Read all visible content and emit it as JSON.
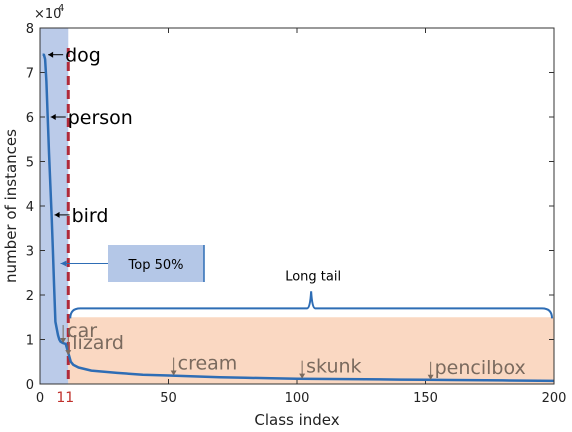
{
  "chart_data": {
    "type": "line",
    "xlabel": "Class index",
    "ylabel": "number of instances",
    "y_multiplier_label": "×10",
    "y_multiplier_exp": "4",
    "xlim": [
      0,
      200
    ],
    "ylim": [
      0,
      80000
    ],
    "x_ticks": [
      0,
      50,
      100,
      150,
      200
    ],
    "y_ticks": [
      0,
      1,
      2,
      3,
      4,
      5,
      6,
      7,
      8
    ],
    "highlight_tick": {
      "label": "11",
      "value": 11
    },
    "cutoff_x": 11,
    "colors": {
      "line": "#2e6db5",
      "top_region": "#8ea9db",
      "tail_region": "#f8cbad",
      "cutoff": "#b02a3a",
      "tail_text": "#7a6a5e",
      "bracket": "#2e6db5",
      "highlight_tick": "#c0302b"
    },
    "series": [
      {
        "x": [
          1,
          1.5,
          2,
          2.5,
          3,
          3.5,
          4,
          4.5,
          5,
          5.5,
          6,
          7,
          7.5,
          8,
          9,
          10,
          11,
          12,
          13,
          15,
          20,
          30,
          40,
          50,
          60,
          70,
          80,
          90,
          100,
          120,
          140,
          150,
          160,
          180,
          200
        ],
        "values": [
          74000,
          74000,
          73000,
          68000,
          60000,
          52000,
          45000,
          38000,
          30000,
          22000,
          14000,
          11000,
          10000,
          9500,
          9200,
          9000,
          7000,
          5000,
          4300,
          3700,
          3000,
          2500,
          2100,
          1900,
          1700,
          1500,
          1400,
          1300,
          1200,
          1100,
          1000,
          950,
          900,
          800,
          700
        ]
      }
    ],
    "annotations": [
      {
        "label": "dog",
        "x": 2,
        "y": 74000,
        "style": "big"
      },
      {
        "label": "person",
        "x": 3,
        "y": 60000,
        "style": "big"
      },
      {
        "label": "bird",
        "x": 4.5,
        "y": 38000,
        "style": "big"
      },
      {
        "label": "car",
        "x": 9,
        "y": 9200,
        "style": "brown"
      },
      {
        "label": "lizard",
        "x": 11,
        "y": 6500,
        "style": "brown"
      },
      {
        "label": "cream",
        "x": 52,
        "y": 1900,
        "style": "brown"
      },
      {
        "label": "skunk",
        "x": 102,
        "y": 1200,
        "style": "brown"
      },
      {
        "label": "pencilbox",
        "x": 152,
        "y": 950,
        "style": "brown"
      }
    ],
    "callouts": {
      "top_label": "Top 50%",
      "tail_label": "Long tail"
    }
  }
}
